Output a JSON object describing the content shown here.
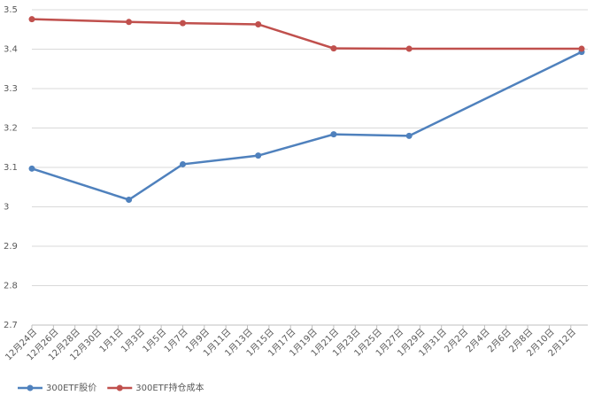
{
  "chart_data": {
    "type": "line",
    "x": [
      "12月24日",
      "1月2日",
      "1月7日",
      "1月14日",
      "1月21日",
      "1月28日",
      "2月13日"
    ],
    "xlim": [
      "12月24日",
      "2月13日"
    ],
    "xticks": [
      "12月24日",
      "12月26日",
      "12月28日",
      "12月30日",
      "1月1日",
      "1月3日",
      "1月5日",
      "1月7日",
      "1月9日",
      "1月11日",
      "1月13日",
      "1月15日",
      "1月17日",
      "1月19日",
      "1月21日",
      "1月23日",
      "1月25日",
      "1月27日",
      "1月29日",
      "1月31日",
      "2月2日",
      "2月4日",
      "2月6日",
      "2月8日",
      "2月10日",
      "2月12日"
    ],
    "series": [
      {
        "name": "300ETF股价",
        "color": "#4f81bd",
        "values": [
          3.097,
          3.018,
          3.108,
          3.13,
          3.184,
          3.18,
          3.393
        ]
      },
      {
        "name": "300ETF持仓成本",
        "color": "#c0504d",
        "values": [
          3.476,
          3.469,
          3.466,
          3.463,
          3.402,
          3.401,
          3.401
        ]
      }
    ],
    "ylim": [
      2.7,
      3.5
    ],
    "yticks": [
      2.7,
      2.8,
      2.9,
      3,
      3.1,
      3.2,
      3.3,
      3.4,
      3.5
    ],
    "grid": true,
    "legend": "bottom-left"
  }
}
